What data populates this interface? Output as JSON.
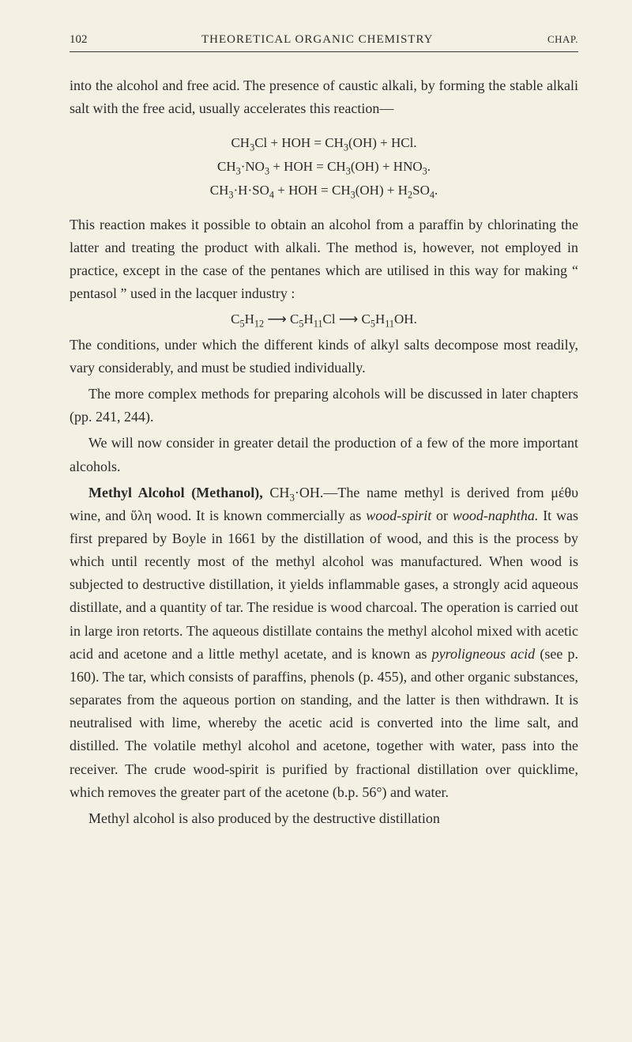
{
  "header": {
    "page_number": "102",
    "title": "THEORETICAL ORGANIC CHEMISTRY",
    "chapter_label": "CHAP."
  },
  "paragraphs": {
    "p1": "into the alcohol and free acid. The presence of caustic alkali, by forming the stable alkali salt with the free acid, usually accelerates this reaction—",
    "eq1_line1": "CH₃Cl + HOH = CH₃(OH) + HCl.",
    "eq1_line2": "CH₃·NO₃ + HOH = CH₃(OH) + HNO₃.",
    "eq1_line3": "CH₃·H·SO₄ + HOH = CH₃(OH) + H₂SO₄.",
    "p2": "This reaction makes it possible to obtain an alcohol from a paraffin by chlorinating the latter and treating the product with alkali. The method is, however, not employed in practice, except in the case of the pentanes which are utilised in this way for making “ pentasol ” used in the lacquer industry :",
    "eq2": "C₅H₁₂ ⟶ C₅H₁₁Cl ⟶ C₅H₁₁OH.",
    "p3": "The conditions, under which the different kinds of alkyl salts decompose most readily, vary considerably, and must be studied individually.",
    "p4": "The more complex methods for preparing alcohols will be discussed in later chapters (pp. 241, 244).",
    "p5": "We will now consider in greater detail the production of a few of the more important alcohols.",
    "p6_bold": "Methyl Alcohol (Methanol),",
    "p6_formula": " CH₃·OH.—",
    "p6_rest1": "The name methyl is derived from ",
    "p6_greek1": "μέθυ",
    "p6_mid1": " wine, and ",
    "p6_greek2": "ὕλη",
    "p6_rest2": " wood. It is known commercially as ",
    "p6_italic1": "wood-spirit",
    "p6_mid2": " or ",
    "p6_italic2": "wood-naphtha.",
    "p6_rest3": " It was first prepared by Boyle in 1661 by the distillation of wood, and this is the process by which until recently most of the methyl alcohol was manufactured. When wood is subjected to destructive distillation, it yields inflammable gases, a strongly acid aqueous distillate, and a quantity of tar. The residue is wood charcoal. The operation is carried out in large iron retorts. The aqueous distillate contains the methyl alcohol mixed with acetic acid and acetone and a little methyl acetate, and is known as ",
    "p6_italic3": "pyroligneous acid",
    "p6_rest4": " (see p. 160). The tar, which consists of paraffins, phenols (p. 455), and other organic substances, separates from the aqueous portion on standing, and the latter is then withdrawn. It is neutralised with lime, whereby the acetic acid is converted into the lime salt, and distilled. The volatile methyl alcohol and acetone, together with water, pass into the receiver. The crude wood-spirit is purified by fractional distillation over quicklime, which removes the greater part of the acetone (b.p. 56°) and water.",
    "p7": "Methyl alcohol is also produced by the destructive distillation"
  }
}
